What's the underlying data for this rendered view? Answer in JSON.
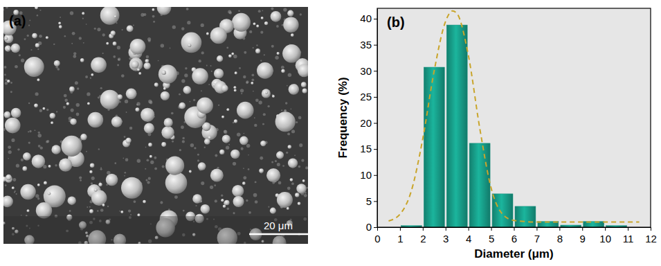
{
  "image": {
    "label": "(a)",
    "scale_bar": "20 μm"
  },
  "chart_data": {
    "type": "histogram",
    "title": "(b)",
    "x_label": "Diameter (μm)",
    "y_label": "Frequency (%)",
    "bins": [
      1,
      2,
      3,
      4,
      5,
      6,
      7,
      8,
      9,
      10,
      11
    ],
    "series": [
      {
        "type": "bar",
        "color": "#16927f",
        "values": [
          0.3,
          30.7,
          38.8,
          16.1,
          6.4,
          4.0,
          1.1,
          0.4,
          1.1,
          0.3
        ]
      },
      {
        "type": "line",
        "color": "#c9a52b",
        "line_style": "dashed",
        "x": [
          0.5,
          1,
          1.5,
          2,
          2.5,
          3,
          3.3,
          3.5,
          4,
          4.5,
          5,
          5.5,
          6,
          7,
          8,
          9,
          10,
          11,
          11.5
        ],
        "values": [
          1.2,
          2.5,
          7,
          17,
          30,
          39.5,
          41.5,
          41,
          33,
          19,
          7.5,
          2.5,
          1.3,
          1,
          1,
          1,
          1,
          1,
          1
        ]
      }
    ],
    "xlim": [
      0,
      12
    ],
    "xticks": [
      0,
      1,
      2,
      3,
      4,
      5,
      6,
      7,
      8,
      9,
      10,
      11,
      12
    ],
    "ylim": [
      0,
      42
    ],
    "yticks": [
      0,
      5,
      10,
      15,
      20,
      25,
      30,
      35,
      40
    ],
    "grid": false
  }
}
